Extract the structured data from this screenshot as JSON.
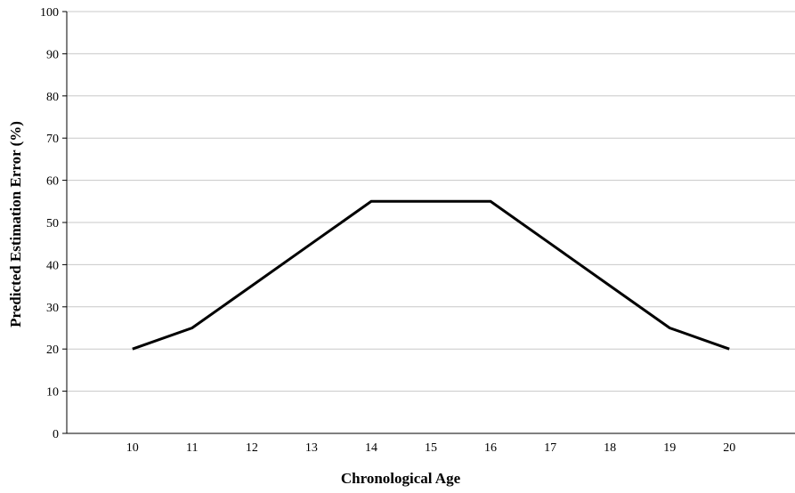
{
  "chart_data": {
    "type": "line",
    "title": "",
    "xlabel": "Chronological Age",
    "ylabel": "Predicted Estimation Error (%)",
    "x": [
      10,
      11,
      12,
      13,
      14,
      15,
      16,
      17,
      18,
      19,
      20
    ],
    "xtick_labels": [
      "10",
      "11",
      "12",
      "13",
      "14",
      "15",
      "16",
      "17",
      "18",
      "19",
      "20"
    ],
    "yticks": [
      0,
      10,
      20,
      30,
      40,
      50,
      60,
      70,
      80,
      90,
      100
    ],
    "ytick_labels": [
      "0",
      "10",
      "20",
      "30",
      "40",
      "50",
      "60",
      "70",
      "80",
      "90",
      "100"
    ],
    "ylim": [
      0,
      100
    ],
    "series": [
      {
        "values": [
          20,
          25,
          35,
          45,
          55,
          55,
          55,
          45,
          35,
          25,
          20
        ],
        "color": "#000000"
      }
    ],
    "grid": "horizontal",
    "legend": "none",
    "colors": {
      "line": "#000000",
      "grid": "#c8c8c8",
      "axis": "#000000"
    }
  }
}
